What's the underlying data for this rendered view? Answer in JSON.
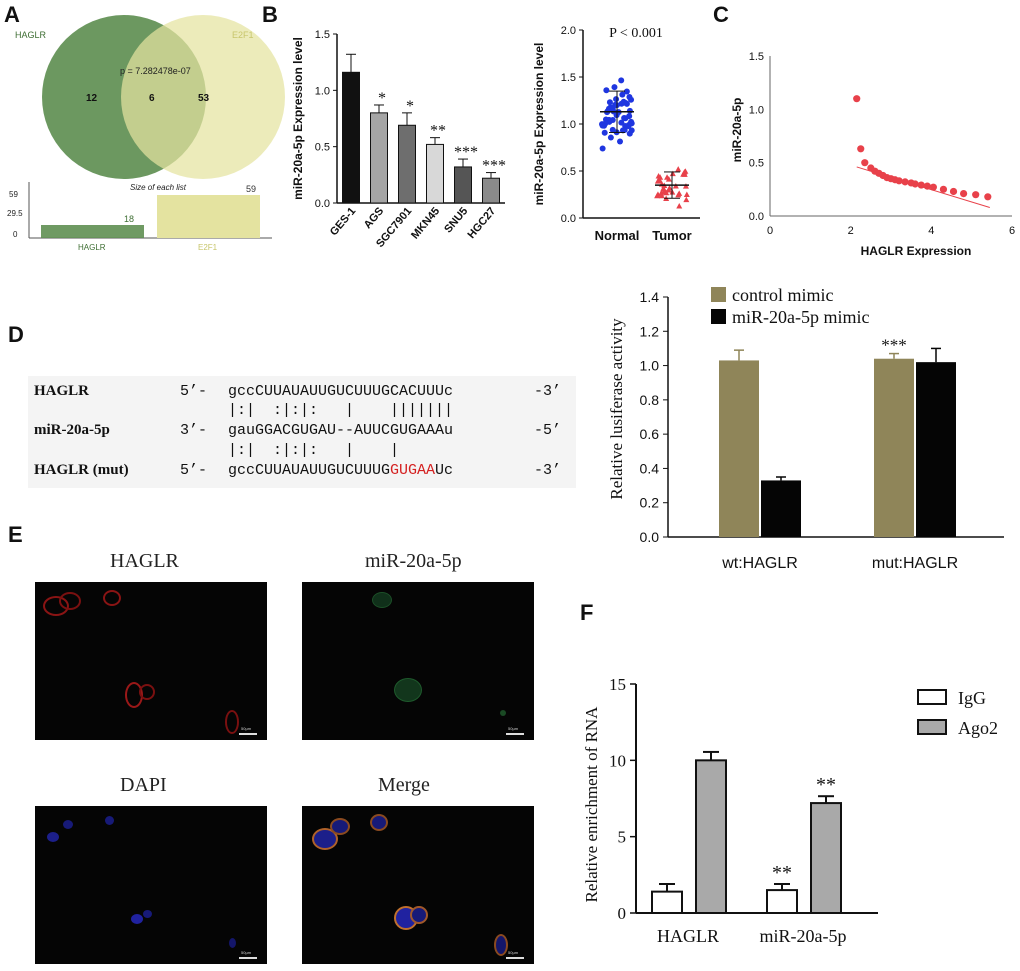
{
  "panels": {
    "a": "A",
    "b": "B",
    "c": "C",
    "d": "D",
    "e": "E",
    "f": "F"
  },
  "venn": {
    "set_left": "HAGLR",
    "set_right": "E2F1",
    "left_only": "12",
    "overlap": "6",
    "right_only": "53",
    "p_value": "p = 7.282478e-07",
    "size_title": "Size of each list",
    "bar_ticks": [
      "59",
      "29.5",
      "0"
    ],
    "bar_labels": [
      "HAGLR",
      "E2F1"
    ],
    "bar_values": [
      18,
      59
    ],
    "bar_value_labels": [
      "18",
      "59"
    ],
    "colors": {
      "left": "#5f8f52",
      "right": "#e4e3a0"
    }
  },
  "sequence": {
    "rows": [
      {
        "name": "HAGLR",
        "prefix": "5’-",
        "seq": "gccCUUAUAUUGUCUUUGCACUUUc",
        "suffix": "-3’"
      },
      {
        "name": "",
        "prefix": "",
        "seq": "|:|  :|:|:   |    |||||||",
        "suffix": ""
      },
      {
        "name": "miR-20a-5p",
        "prefix": "3’-",
        "seq": "gauGGACGUGAU--AUUCGUGAAAu",
        "suffix": "-5’"
      },
      {
        "name": "",
        "prefix": "",
        "seq": "|:|  :|:|:   |    |",
        "suffix": ""
      },
      {
        "name": "HAGLR (mut)",
        "prefix": "5’-",
        "seq_normal": "gccCUUAUAUUGUCUUUG",
        "seq_mut": "GUGAA",
        "seq_end": "Uc",
        "suffix": "-3’"
      }
    ],
    "mut_color": "#d42020"
  },
  "micrographs": [
    {
      "label": "HAGLR",
      "scale": "50µm"
    },
    {
      "label": "miR-20a-5p",
      "scale": "50µm"
    },
    {
      "label": "DAPI",
      "scale": "50µm"
    },
    {
      "label": "Merge",
      "scale": "50µm"
    }
  ],
  "chart_data": [
    {
      "id": "B-left",
      "type": "bar",
      "ylabel": "miR-20a-5p Expression level",
      "categories": [
        "GES-1",
        "AGS",
        "SGC7901",
        "MKN45",
        "SNU5",
        "HGC27"
      ],
      "values": [
        1.16,
        0.8,
        0.69,
        0.52,
        0.32,
        0.22
      ],
      "errors": [
        0.16,
        0.07,
        0.11,
        0.06,
        0.07,
        0.05
      ],
      "annotations": [
        "",
        "*",
        "*",
        "**",
        "***",
        "***"
      ],
      "fills": [
        "#111111",
        "#a5a5a5",
        "#6e6e6e",
        "#d8d8d8",
        "#555555",
        "#8a8a8a"
      ],
      "ylim": [
        0,
        1.5
      ],
      "yticks": [
        "0.0",
        "0.5",
        "1.0",
        "1.5"
      ]
    },
    {
      "id": "B-right",
      "type": "scatter",
      "title": "P < 0.001",
      "ylabel": "miR-20a-5p Expression level",
      "categories": [
        "Normal",
        "Tumor"
      ],
      "means": [
        1.13,
        0.35
      ],
      "sd": [
        0.22,
        0.14
      ],
      "colors": [
        "#1f36e0",
        "#e8414a"
      ],
      "ylim": [
        0,
        2.0
      ],
      "yticks": [
        "0.0",
        "0.5",
        "1.0",
        "1.5",
        "2.0"
      ]
    },
    {
      "id": "C",
      "type": "scatter",
      "xlabel": "HAGLR Expression",
      "ylabel": "miR-20a-5p",
      "xlim": [
        0,
        6
      ],
      "ylim": [
        0,
        1.5
      ],
      "xticks": [
        "0",
        "2",
        "4",
        "6"
      ],
      "yticks": [
        "0.0",
        "0.5",
        "1.0",
        "1.5"
      ],
      "x": [
        2.15,
        2.25,
        2.35,
        2.5,
        2.6,
        2.7,
        2.8,
        2.9,
        3.0,
        3.1,
        3.2,
        3.35,
        3.5,
        3.6,
        3.75,
        3.9,
        4.05,
        4.3,
        4.55,
        4.8,
        5.1,
        5.4
      ],
      "y": [
        1.1,
        0.63,
        0.5,
        0.45,
        0.42,
        0.4,
        0.38,
        0.36,
        0.35,
        0.34,
        0.33,
        0.32,
        0.31,
        0.3,
        0.29,
        0.28,
        0.27,
        0.25,
        0.23,
        0.21,
        0.2,
        0.18
      ],
      "trend": [
        [
          2.15,
          0.46
        ],
        [
          5.45,
          0.08
        ]
      ],
      "color": "#e8414a"
    },
    {
      "id": "D-chart",
      "type": "bar",
      "ylabel": "Relative lusiferase activity",
      "categories": [
        "wt:HAGLR",
        "mut:HAGLR"
      ],
      "series": [
        {
          "name": "control mimic",
          "values": [
            1.03,
            1.04
          ],
          "errors": [
            0.06,
            0.03
          ],
          "color": "#8f8559"
        },
        {
          "name": "miR-20a-5p mimic",
          "values": [
            0.33,
            1.02
          ],
          "errors": [
            0.02,
            0.08
          ],
          "color": "#050505"
        }
      ],
      "annotations": [
        [
          "",
          "***"
        ],
        [
          "",
          ""
        ]
      ],
      "ylim": [
        0,
        1.4
      ],
      "yticks": [
        "0.0",
        "0.2",
        "0.4",
        "0.6",
        "0.8",
        "1.0",
        "1.2",
        "1.4"
      ]
    },
    {
      "id": "F",
      "type": "bar",
      "ylabel": "Relative enrichment of RNA",
      "categories": [
        "HAGLR",
        "miR-20a-5p"
      ],
      "series": [
        {
          "name": "IgG",
          "values": [
            1.4,
            1.5
          ],
          "errors": [
            0.5,
            0.4
          ],
          "color": "#ffffff"
        },
        {
          "name": "Ago2",
          "values": [
            10.0,
            7.2
          ],
          "errors": [
            0.55,
            0.45
          ],
          "color": "#a9a9a9"
        }
      ],
      "annotations": [
        [
          "",
          "**"
        ],
        [
          "",
          "**"
        ]
      ],
      "ylim": [
        0,
        15
      ],
      "yticks": [
        "0",
        "5",
        "10",
        "15"
      ]
    }
  ]
}
